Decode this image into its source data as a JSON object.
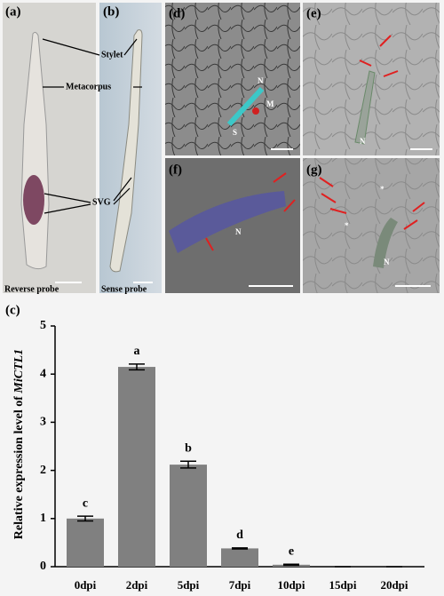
{
  "figure": {
    "panel_labels": [
      "(a)",
      "(b)",
      "(c)",
      "(d)",
      "(e)",
      "(f)",
      "(g)"
    ],
    "callouts": [
      "Stylet",
      "Metacorpus",
      "SVG"
    ],
    "captions": [
      "Reverse probe",
      "Sense probe"
    ],
    "marks": [
      "N",
      "M",
      "S",
      "N",
      "N",
      "N",
      "*",
      "*"
    ]
  },
  "chart_data": {
    "type": "bar",
    "y_label": [
      "Relative expression level of ",
      "MiCTL1"
    ],
    "categories": [
      "0dpi",
      "2dpi",
      "5dpi",
      "7dpi",
      "10dpi",
      "15dpi",
      "20dpi"
    ],
    "values": [
      1.0,
      4.15,
      2.12,
      0.38,
      0.04,
      0,
      0
    ],
    "errors": [
      0.05,
      0.06,
      0.07,
      0.01,
      0.01,
      0,
      0
    ],
    "letters": [
      "c",
      "a",
      "b",
      "d",
      "e",
      null,
      null
    ],
    "color": "#808080",
    "ylim": [
      0,
      5
    ],
    "yticks": [
      0,
      1,
      2,
      3,
      4,
      5
    ]
  }
}
